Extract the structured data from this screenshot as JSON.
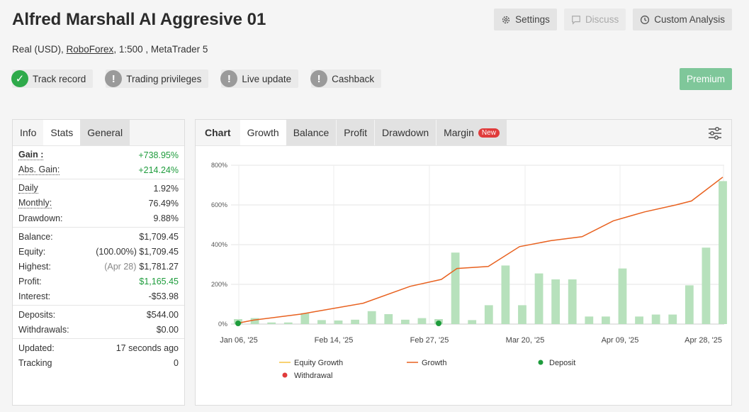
{
  "header": {
    "title": "Alfred Marshall AI Aggresive 01",
    "settings_label": "Settings",
    "discuss_label": "Discuss",
    "custom_label": "Custom Analysis"
  },
  "account": {
    "prefix": "Real (USD), ",
    "broker": "RoboForex",
    "suffix": ", 1:500 , MetaTrader 5"
  },
  "badges": [
    {
      "label": "Track record",
      "icon": "check-icon"
    },
    {
      "label": "Trading privileges",
      "icon": "exclamation-icon"
    },
    {
      "label": "Live update",
      "icon": "exclamation-icon"
    },
    {
      "label": "Cashback",
      "icon": "exclamation-icon"
    }
  ],
  "premium_label": "Premium",
  "stats": {
    "tabs": [
      "Info",
      "Stats",
      "General"
    ],
    "gain_label": "Gain :",
    "gain": "+738.95%",
    "abs_gain_label": "Abs. Gain:",
    "abs_gain": "+214.24%",
    "daily_label": "Daily",
    "daily": "1.92%",
    "monthly_label": "Monthly:",
    "monthly": "76.49%",
    "drawdown_label": "Drawdown:",
    "drawdown": "9.88%",
    "balance_label": "Balance:",
    "balance": "$1,709.45",
    "equity_label": "Equity:",
    "equity_pct": "(100.00%)",
    "equity": "$1,709.45",
    "highest_label": "Highest:",
    "highest_date": "(Apr 28)",
    "highest": "$1,781.27",
    "profit_label": "Profit:",
    "profit": "$1,165.45",
    "interest_label": "Interest:",
    "interest": "-$53.98",
    "deposits_label": "Deposits:",
    "deposits": "$544.00",
    "withdrawals_label": "Withdrawals:",
    "withdrawals": "$0.00",
    "updated_label": "Updated:",
    "updated": "17 seconds ago",
    "tracking_label": "Tracking",
    "tracking": "0"
  },
  "chart_tabs": {
    "chart": "Chart",
    "growth": "Growth",
    "balance": "Balance",
    "profit": "Profit",
    "drawdown": "Drawdown",
    "margin": "Margin",
    "new_tag": "New"
  },
  "chart_data": {
    "type": "bar",
    "y_ticks": [
      "800%",
      "600%",
      "400%",
      "200%",
      "0%"
    ],
    "ylim": [
      0,
      800
    ],
    "x_ticks": [
      "Jan 06, '25",
      "Feb 14, '25",
      "Feb 27, '25",
      "Mar 20, '25",
      "Apr 09, '25",
      "Apr 28, '25"
    ],
    "bars": [
      25,
      30,
      8,
      8,
      55,
      20,
      18,
      22,
      65,
      50,
      22,
      30,
      25,
      360,
      20,
      95,
      295,
      95,
      255,
      225,
      225,
      38,
      38,
      280,
      38,
      48,
      48,
      195,
      385,
      720
    ],
    "growth": [
      [
        0,
        5
      ],
      [
        1,
        20
      ],
      [
        4,
        50
      ],
      [
        8,
        105
      ],
      [
        11,
        190
      ],
      [
        13,
        225
      ],
      [
        14,
        280
      ],
      [
        16,
        290
      ],
      [
        18,
        390
      ],
      [
        20,
        420
      ],
      [
        22,
        440
      ],
      [
        24,
        520
      ],
      [
        26,
        565
      ],
      [
        28,
        600
      ],
      [
        29,
        620
      ],
      [
        31,
        740
      ]
    ],
    "deposits": [
      0,
      12
    ],
    "legend": {
      "equity": "Equity Growth",
      "growth": "Growth",
      "deposit": "Deposit",
      "withdrawal": "Withdrawal"
    },
    "colors": {
      "bar": "#b7e1bc",
      "growth": "#e8611f",
      "equity": "#f5c242",
      "deposit": "#1e9c3c",
      "withdrawal": "#e03b3b"
    }
  }
}
